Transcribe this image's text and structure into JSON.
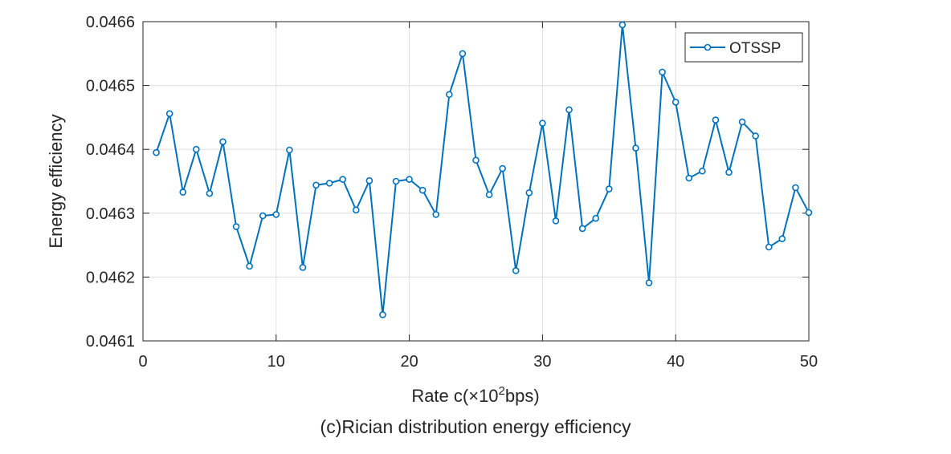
{
  "chart_data": {
    "type": "line",
    "title": "",
    "caption": "(c)Rician distribution energy efficiency",
    "xlabel": "Rate c(×10²bps)",
    "xlabel_base": "Rate c(×10",
    "xlabel_sup": "2",
    "xlabel_tail": "bps)",
    "ylabel": "Energy efficiency",
    "xlim": [
      0,
      50
    ],
    "ylim": [
      0.0461,
      0.0466
    ],
    "xticks": [
      0,
      10,
      20,
      30,
      40,
      50
    ],
    "yticks": [
      0.0461,
      0.0462,
      0.0463,
      0.0464,
      0.0465,
      0.0466
    ],
    "grid": true,
    "legend_position": "top-right",
    "series": [
      {
        "name": "OTSSP",
        "color": "#0072BD",
        "marker": "circle",
        "x": [
          1,
          2,
          3,
          4,
          5,
          6,
          7,
          8,
          9,
          10,
          11,
          12,
          13,
          14,
          15,
          16,
          17,
          18,
          19,
          20,
          21,
          22,
          23,
          24,
          25,
          26,
          27,
          28,
          29,
          30,
          31,
          32,
          33,
          34,
          35,
          36,
          37,
          38,
          39,
          40,
          41,
          42,
          43,
          44,
          45,
          46,
          47,
          48,
          49,
          50
        ],
        "y": [
          0.046395,
          0.046456,
          0.046333,
          0.0464,
          0.046331,
          0.046412,
          0.046279,
          0.046217,
          0.046296,
          0.046298,
          0.046399,
          0.046215,
          0.046344,
          0.046347,
          0.046353,
          0.046305,
          0.046351,
          0.046141,
          0.04635,
          0.046353,
          0.046336,
          0.046298,
          0.046486,
          0.04655,
          0.046383,
          0.046329,
          0.04637,
          0.04621,
          0.046332,
          0.046441,
          0.046288,
          0.046462,
          0.046276,
          0.046292,
          0.046338,
          0.046595,
          0.046402,
          0.046191,
          0.046521,
          0.046474,
          0.046355,
          0.046366,
          0.046446,
          0.046364,
          0.046443,
          0.046421,
          0.046247,
          0.04626,
          0.04634,
          0.046301
        ]
      }
    ]
  }
}
